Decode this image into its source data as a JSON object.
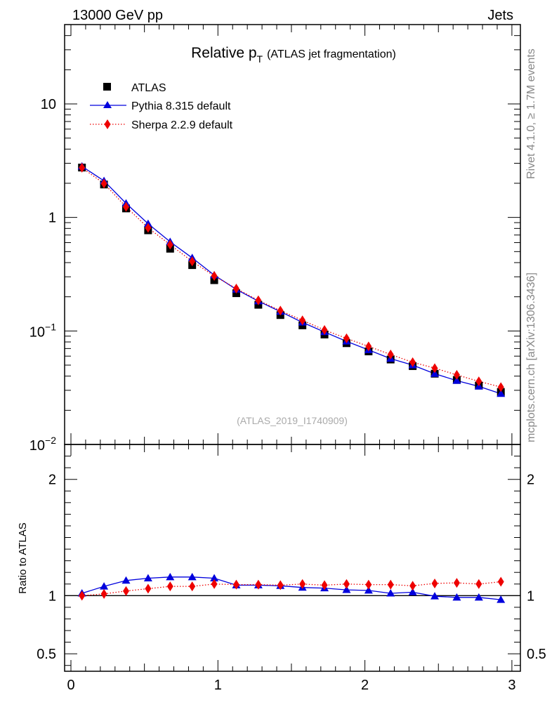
{
  "header": {
    "energy": "13000 GeV pp",
    "process": "Jets"
  },
  "side_text": {
    "rivet": "Rivet 4.1.0, ≥ 1.7M events",
    "mcplots": "mcplots.cern.ch [arXiv:1306.3436]"
  },
  "colors": {
    "atlas": "#000000",
    "pythia": "#0000dd",
    "sherpa": "#ee0000"
  },
  "chart_data": [
    {
      "type": "line",
      "title_main": "Relative p",
      "title_sub": "T",
      "title_note": "(ATLAS jet fragmentation)",
      "watermark": "(ATLAS_2019_I1740909)",
      "yscale": "log",
      "ylim": [
        0.01,
        50
      ],
      "xlim": [
        0,
        3
      ],
      "y_tick_labels": [
        {
          "value": 10,
          "text": "10"
        },
        {
          "value": 1,
          "text": "1"
        },
        {
          "value": 0.1,
          "base": "10",
          "exp": "−1"
        },
        {
          "value": 0.01,
          "base": "10",
          "exp": "−2"
        }
      ],
      "legend_position": "top-left",
      "x": [
        0.075,
        0.225,
        0.375,
        0.525,
        0.675,
        0.825,
        0.975,
        1.125,
        1.275,
        1.425,
        1.575,
        1.725,
        1.875,
        2.025,
        2.175,
        2.325,
        2.475,
        2.625,
        2.775,
        2.925
      ],
      "series": [
        {
          "name": "ATLAS",
          "style": "data-square",
          "values": [
            2.75,
            1.95,
            1.2,
            0.77,
            0.53,
            0.38,
            0.28,
            0.215,
            0.17,
            0.138,
            0.112,
            0.093,
            0.078,
            0.066,
            0.056,
            0.049,
            0.042,
            0.037,
            0.033,
            0.029
          ]
        },
        {
          "name": "Pythia 8.315 default",
          "style": "solid-triangle",
          "values": [
            2.82,
            2.1,
            1.33,
            0.88,
            0.61,
            0.44,
            0.31,
            0.232,
            0.183,
            0.148,
            0.119,
            0.098,
            0.081,
            0.068,
            0.057,
            0.05,
            0.042,
            0.0365,
            0.0325,
            0.028
          ]
        },
        {
          "name": "Sherpa 2.2.9 default",
          "style": "dotted-diamond",
          "values": [
            2.74,
            1.99,
            1.24,
            0.81,
            0.575,
            0.41,
            0.305,
            0.236,
            0.186,
            0.151,
            0.124,
            0.102,
            0.086,
            0.073,
            0.062,
            0.053,
            0.047,
            0.041,
            0.036,
            0.032
          ]
        }
      ]
    },
    {
      "type": "line",
      "ylabel": "Ratio to ATLAS",
      "ylim": [
        0.35,
        2.3
      ],
      "xlim": [
        0,
        3
      ],
      "y_tick_labels": [
        {
          "value": 2,
          "text": "2"
        },
        {
          "value": 1,
          "text": "1"
        },
        {
          "value": 0.5,
          "text": "0.5"
        }
      ],
      "x_tick_labels": [
        {
          "value": 0,
          "text": "0"
        },
        {
          "value": 1,
          "text": "1"
        },
        {
          "value": 2,
          "text": "2"
        },
        {
          "value": 3,
          "text": "3"
        }
      ],
      "reference_line": 1,
      "x": [
        0.075,
        0.225,
        0.375,
        0.525,
        0.675,
        0.825,
        0.975,
        1.125,
        1.275,
        1.425,
        1.575,
        1.725,
        1.875,
        2.025,
        2.175,
        2.325,
        2.475,
        2.625,
        2.775,
        2.925
      ],
      "series": [
        {
          "name": "Pythia 8.315 default",
          "style": "solid-triangle",
          "values": [
            1.02,
            1.08,
            1.13,
            1.15,
            1.16,
            1.16,
            1.15,
            1.09,
            1.09,
            1.085,
            1.07,
            1.065,
            1.05,
            1.045,
            1.02,
            1.03,
            0.995,
            0.985,
            0.985,
            0.965
          ]
        },
        {
          "name": "Sherpa 2.2.9 default",
          "style": "dotted-diamond",
          "values": [
            1.0,
            1.015,
            1.04,
            1.06,
            1.08,
            1.08,
            1.1,
            1.095,
            1.095,
            1.09,
            1.1,
            1.09,
            1.1,
            1.095,
            1.095,
            1.085,
            1.105,
            1.11,
            1.1,
            1.12
          ]
        }
      ]
    }
  ]
}
